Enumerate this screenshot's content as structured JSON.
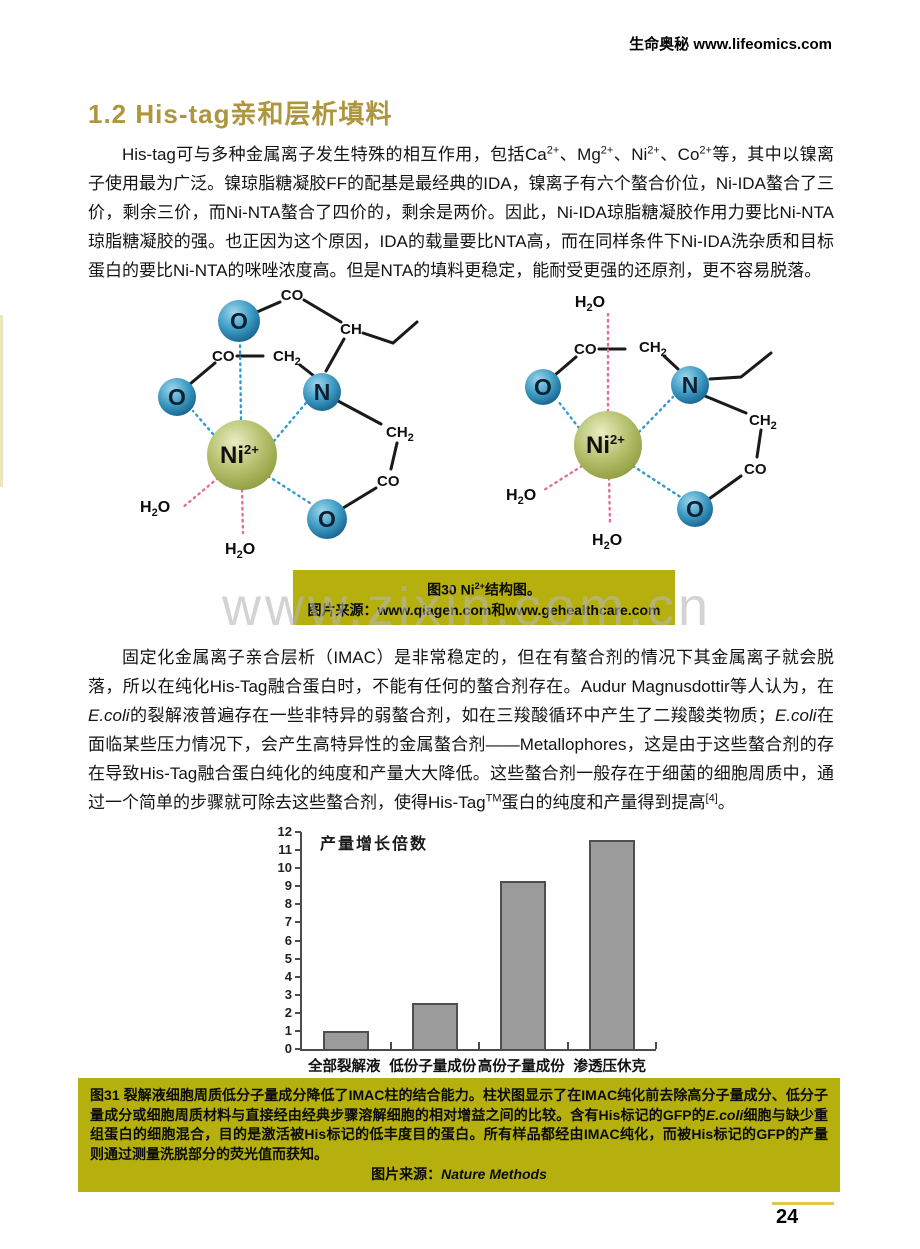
{
  "page": {
    "header": "生命奥秘 www.lifeomics.com",
    "section_title": "1.2 His-tag亲和层析填料",
    "watermark": "www.zixin.com.cn",
    "page_number": "24"
  },
  "colors": {
    "caption_bg": "#b5b00d",
    "title_gold": "#ae963e",
    "footer_line_gold": "#ddc94e",
    "bar_fill": "#9b9b9b",
    "ni_green": "#a9b55c",
    "atom_blue": "#2a89b8",
    "coord_bond_blue": "#2e9ad0",
    "water_bond_pink": "#e46e96"
  },
  "p1": [
    "His-tag可与多种金属离子发生特殊的相互作用，包括Ca",
    "2+",
    "、Mg",
    "2+",
    "、Ni",
    "2+",
    "、Co",
    "2+",
    "等，其中以镍离子使用最为广泛。镍琼脂糖凝胶FF的配基是最经典的IDA，镍离子有六个螯合价位，Ni-IDA螯合了三价，剩余三价，而Ni-NTA螯合了四价的，剩余是两价。因此，Ni-IDA琼脂糖凝胶作用力要比Ni-NTA琼脂糖凝胶的强。也正因为这个原因，IDA的载量要比NTA高，而在同样条件下Ni-IDA洗杂质和目标蛋白的要比Ni-NTA的咪唑浓度高。但是NTA的填料更稳定，能耐受更强的还原剂，更不容易脱落。"
  ],
  "p2": [
    "固定化金属离子亲合层析（IMAC）是非常稳定的，但在有螯合剂的情况下其金属离子就会脱落，所以在纯化His-Tag融合蛋白时，不能有任何的螯合剂存在。Audur Magnusdottir等人认为，在",
    "E.coli",
    "的裂解液普遍存在一些非特异的弱螯合剂，如在三羧酸循环中产生了二羧酸类物质；",
    "E.coli",
    "在面临某些压力情况下，会产生高特异性的金属螯合剂——Metallophores，这是由于这些螯合剂的存在导致His-Tag融合蛋白纯化的纯度和产量大大降低。这些螯合剂一般存在于细菌的细胞周质中，通过一个简单的步骤就可除去这些螯合剂，使得His-Tag",
    "TM",
    "蛋白的纯度和产量得到提高",
    "[4]",
    "。"
  ],
  "fig30": {
    "line1_pre": "图30 Ni",
    "line1_sup": "2+",
    "line1_post": "结构图。",
    "line2": "图片来源：www.qiagen.com和www.gehealthcare.com"
  },
  "fig31": {
    "body_pre": "图31 裂解液细胞周质低分子量成分降低了IMAC柱的结合能力。柱状图显示了在IMAC纯化前去除高分子量成分、低分子量成分或细胞周质材料与直接经由经典步骤溶解细胞的相对增益之间的比较。含有His标记的GFP的",
    "italic1": "E.coli",
    "body_post": "细胞与缺少重组蛋白的细胞混合，目的是激活被His标记的低丰度目的蛋白。所有样品都经由IMAC纯化，而被His标记的GFP的产量则通过测量洗脱部分的荧光值而获知。",
    "source_label": "图片来源：",
    "source_name": "Nature Methods"
  },
  "mol": {
    "ni": "Ni",
    "ni_charge": "2+",
    "o": "O",
    "n": "N",
    "co": "CO",
    "ch": "CH",
    "h": "H",
    "sub2": "2"
  },
  "chart_data": {
    "type": "bar",
    "title": "产量增长倍数",
    "categories": [
      "全部裂解液",
      "低份子量成份",
      "高份子量成份",
      "渗透压休克"
    ],
    "values": [
      1,
      2.55,
      9.3,
      11.55
    ],
    "xlabel": "",
    "ylabel": "",
    "ylim": [
      0,
      12
    ],
    "ytick_step": 1,
    "grid": false,
    "legend": "none"
  }
}
